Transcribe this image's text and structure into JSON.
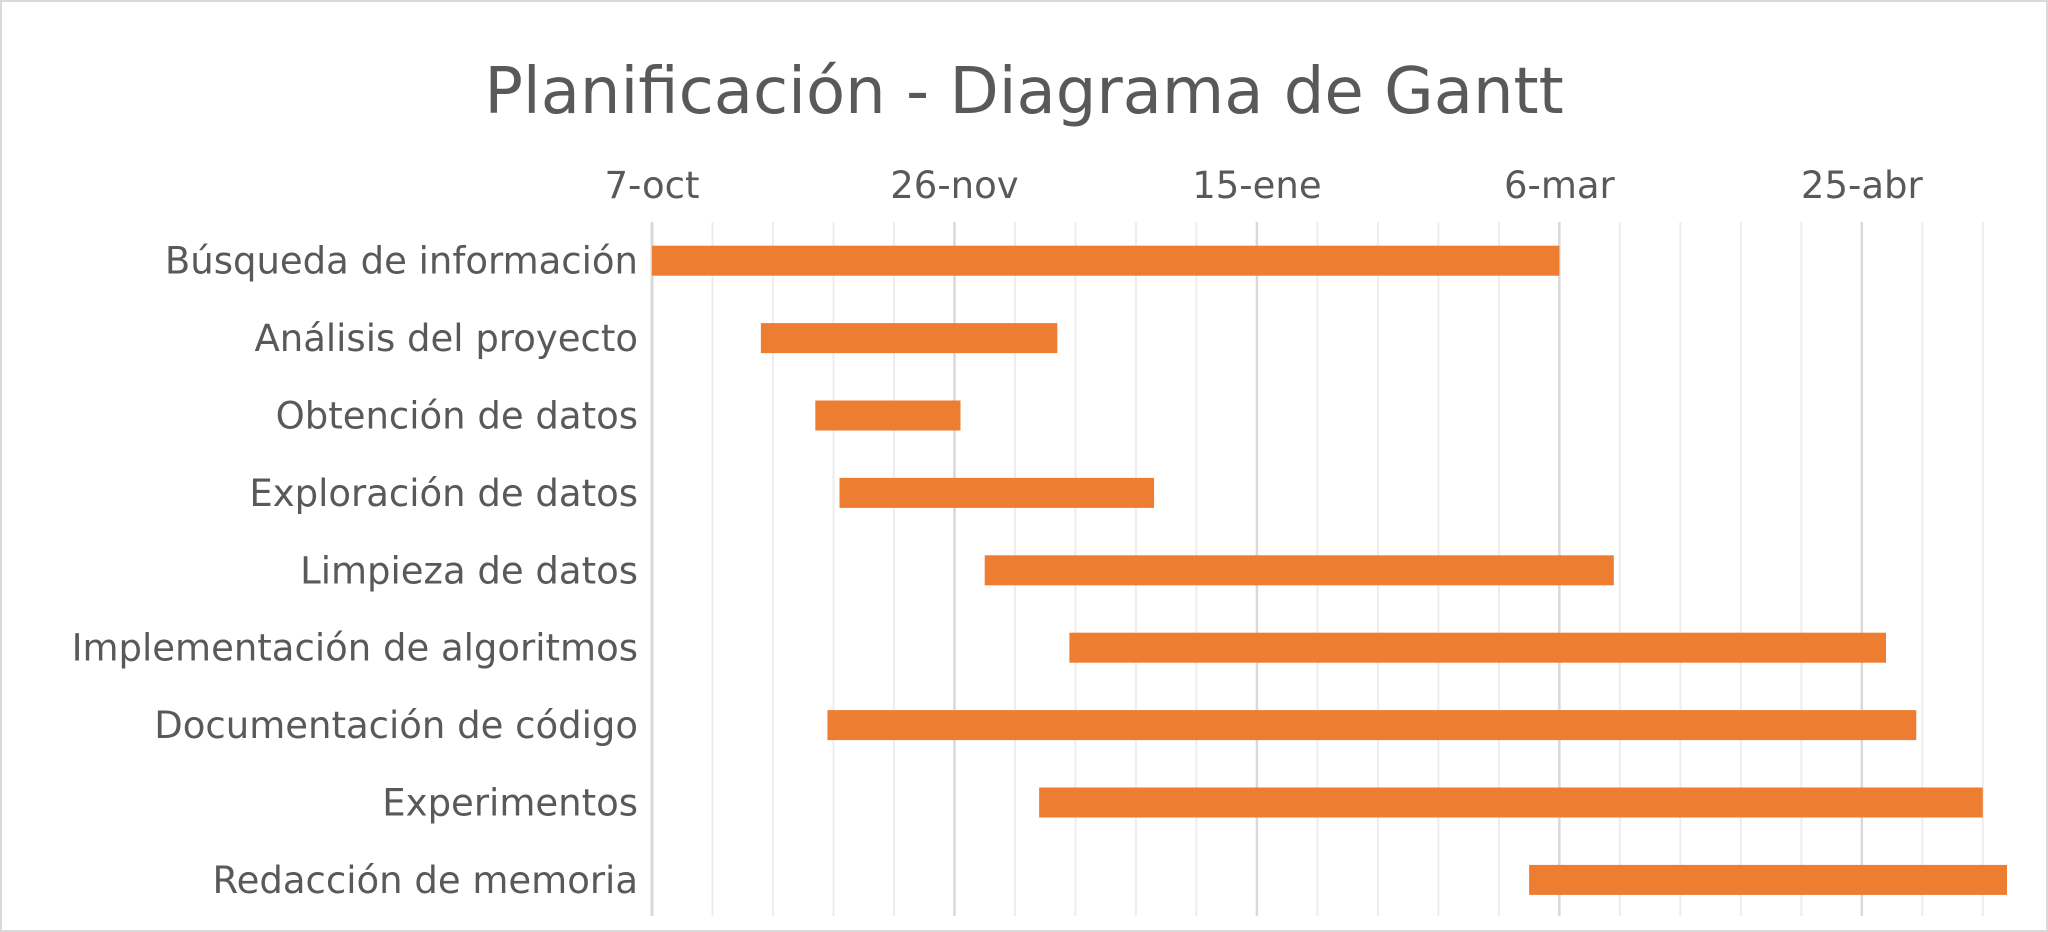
{
  "chart_data": {
    "type": "bar",
    "orientation": "horizontal",
    "title": "Planificación - Diagrama de Gantt",
    "xlabel": "",
    "ylabel": "",
    "x_axis_position": "top",
    "x_tick_labels": [
      "7-oct",
      "26-nov",
      "15-ene",
      "6-mar",
      "25-abr"
    ],
    "x_ticks_day_offset": [
      0,
      50,
      100,
      150,
      200
    ],
    "x_range_day_offset": [
      0,
      224
    ],
    "minor_grid_step_days": 10,
    "major_grid_step_days": 50,
    "grid": true,
    "legend": "none",
    "bar_color": "#ed7d31",
    "categories": [
      "Búsqueda de información",
      "Análisis del proyecto",
      "Obtención de datos",
      "Exploración de datos",
      "Limpieza de datos",
      "Implementación de algoritmos",
      "Documentación de código",
      "Experimentos",
      "Redacción de memoria"
    ],
    "tasks": [
      {
        "name": "Búsqueda de información",
        "start": 0,
        "end": 150
      },
      {
        "name": "Análisis del proyecto",
        "start": 18,
        "end": 67
      },
      {
        "name": "Obtención de datos",
        "start": 27,
        "end": 51
      },
      {
        "name": "Exploración de datos",
        "start": 31,
        "end": 83
      },
      {
        "name": "Limpieza de datos",
        "start": 55,
        "end": 159
      },
      {
        "name": "Implementación de algoritmos",
        "start": 69,
        "end": 204
      },
      {
        "name": "Documentación de código",
        "start": 29,
        "end": 209
      },
      {
        "name": "Experimentos",
        "start": 64,
        "end": 220
      },
      {
        "name": "Redacción de memoria",
        "start": 145,
        "end": 224
      }
    ]
  }
}
